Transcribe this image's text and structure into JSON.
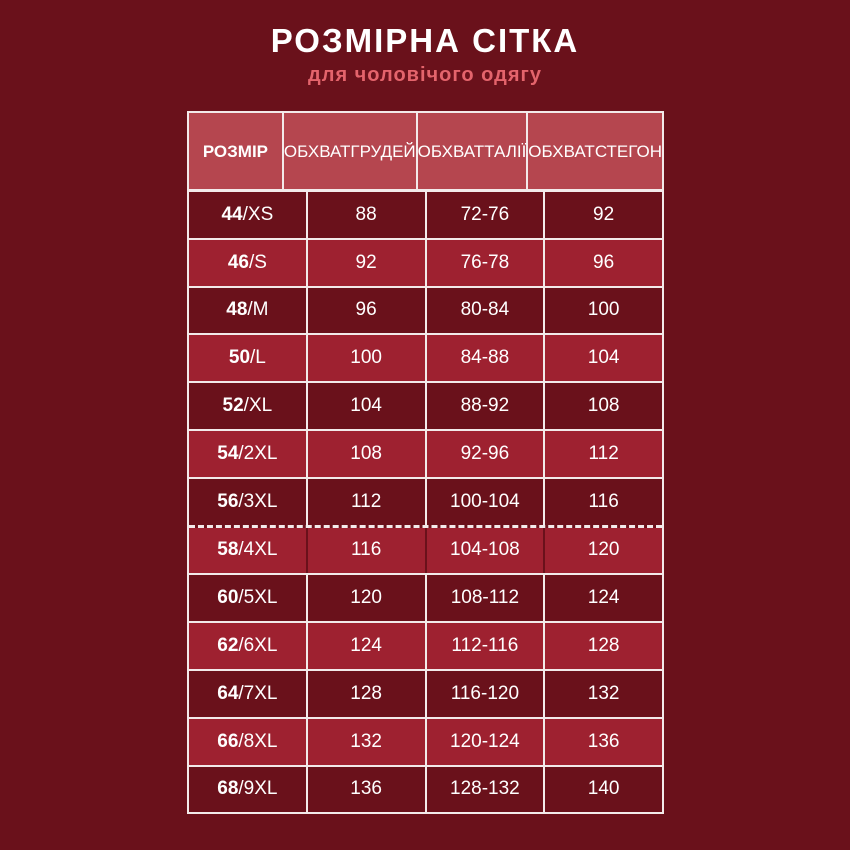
{
  "title": "РОЗМІРНА СІТКА",
  "subtitle": "для чоловічого одягу",
  "colors": {
    "background": "#6a111b",
    "header": "#b5464f",
    "row_light": "#9e2130",
    "row_dark": "#6a111b",
    "subtitle": "#e4646c"
  },
  "headers": [
    {
      "l1": "РОЗМІР",
      "l2": ""
    },
    {
      "l1": "ОБХВАТ",
      "l2": "ГРУДЕЙ"
    },
    {
      "l1": "ОБХВАТ",
      "l2": "ТАЛІЇ"
    },
    {
      "l1": "ОБХВАТ",
      "l2": "СТЕГОН"
    }
  ],
  "rows": [
    {
      "num": "44",
      "letter": "/XS",
      "chest": "88",
      "waist": "72-76",
      "hips": "92"
    },
    {
      "num": "46",
      "letter": "/S",
      "chest": "92",
      "waist": "76-78",
      "hips": "96"
    },
    {
      "num": "48",
      "letter": "/M",
      "chest": "96",
      "waist": "80-84",
      "hips": "100"
    },
    {
      "num": "50",
      "letter": "/L",
      "chest": "100",
      "waist": "84-88",
      "hips": "104"
    },
    {
      "num": "52",
      "letter": "/XL",
      "chest": "104",
      "waist": "88-92",
      "hips": "108"
    },
    {
      "num": "54",
      "letter": "/2XL",
      "chest": "108",
      "waist": "92-96",
      "hips": "112"
    },
    {
      "num": "56",
      "letter": "/3XL",
      "chest": "112",
      "waist": "100-104",
      "hips": "116"
    },
    {
      "num": "58",
      "letter": "/4XL",
      "chest": "116",
      "waist": "104-108",
      "hips": "120"
    },
    {
      "num": "60",
      "letter": "/5XL",
      "chest": "120",
      "waist": "108-112",
      "hips": "124"
    },
    {
      "num": "62",
      "letter": "/6XL",
      "chest": "124",
      "waist": "112-116",
      "hips": "128"
    },
    {
      "num": "64",
      "letter": "/7XL",
      "chest": "128",
      "waist": "116-120",
      "hips": "132"
    },
    {
      "num": "66",
      "letter": "/8XL",
      "chest": "132",
      "waist": "120-124",
      "hips": "136"
    },
    {
      "num": "68",
      "letter": "/9XL",
      "chest": "136",
      "waist": "128-132",
      "hips": "140"
    }
  ]
}
